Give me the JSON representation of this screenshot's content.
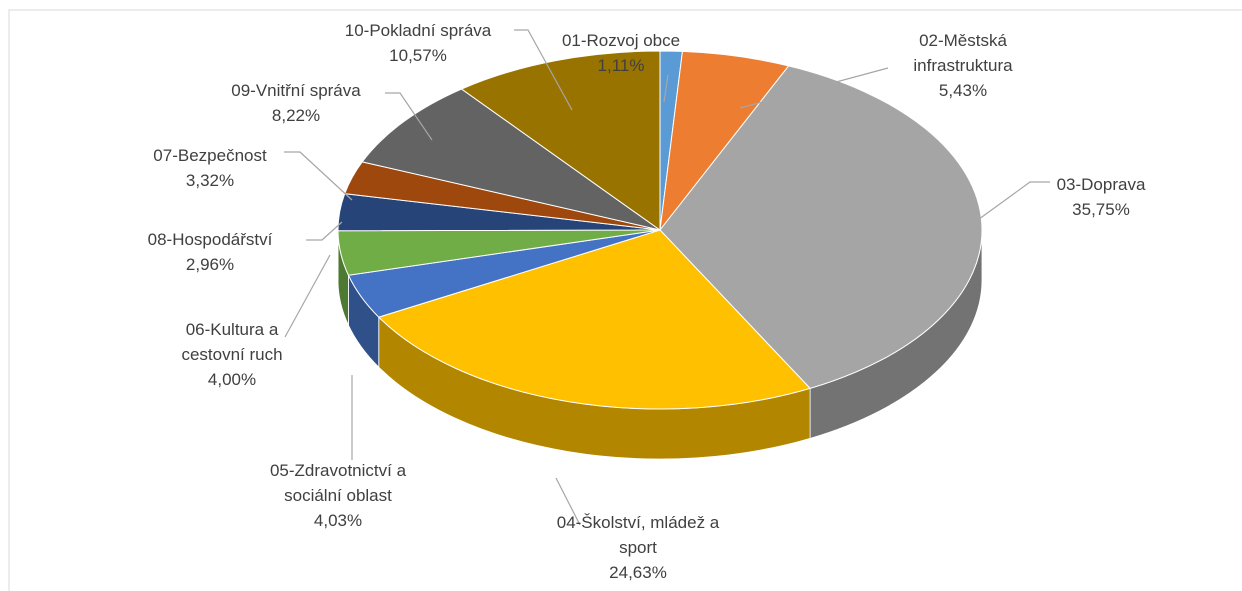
{
  "chart_data": {
    "type": "pie",
    "categories": [
      "01-Rozvoj obce",
      "02-Městská infrastruktura",
      "03-Doprava",
      "04-Školství, mládež a sport",
      "05-Zdravotnictví a sociální oblast",
      "06-Kultura a cestovní ruch",
      "07-Bezpečnost",
      "08-Hospodářství",
      "09-Vnitřní správa",
      "10-Pokladní správa"
    ],
    "values": [
      1.11,
      5.43,
      35.75,
      24.63,
      4.03,
      4.0,
      3.32,
      2.96,
      8.22,
      10.57
    ],
    "value_labels": [
      "1,11%",
      "5,43%",
      "35,75%",
      "24,63%",
      "4,03%",
      "4,00%",
      "3,32%",
      "2,96%",
      "8,22%",
      "10,57%"
    ],
    "colors": [
      "#5b9bd5",
      "#ed7d31",
      "#a5a5a5",
      "#ffc000",
      "#4472c4",
      "#70ad47",
      "#264478",
      "#9e480e",
      "#636363",
      "#997300"
    ]
  }
}
